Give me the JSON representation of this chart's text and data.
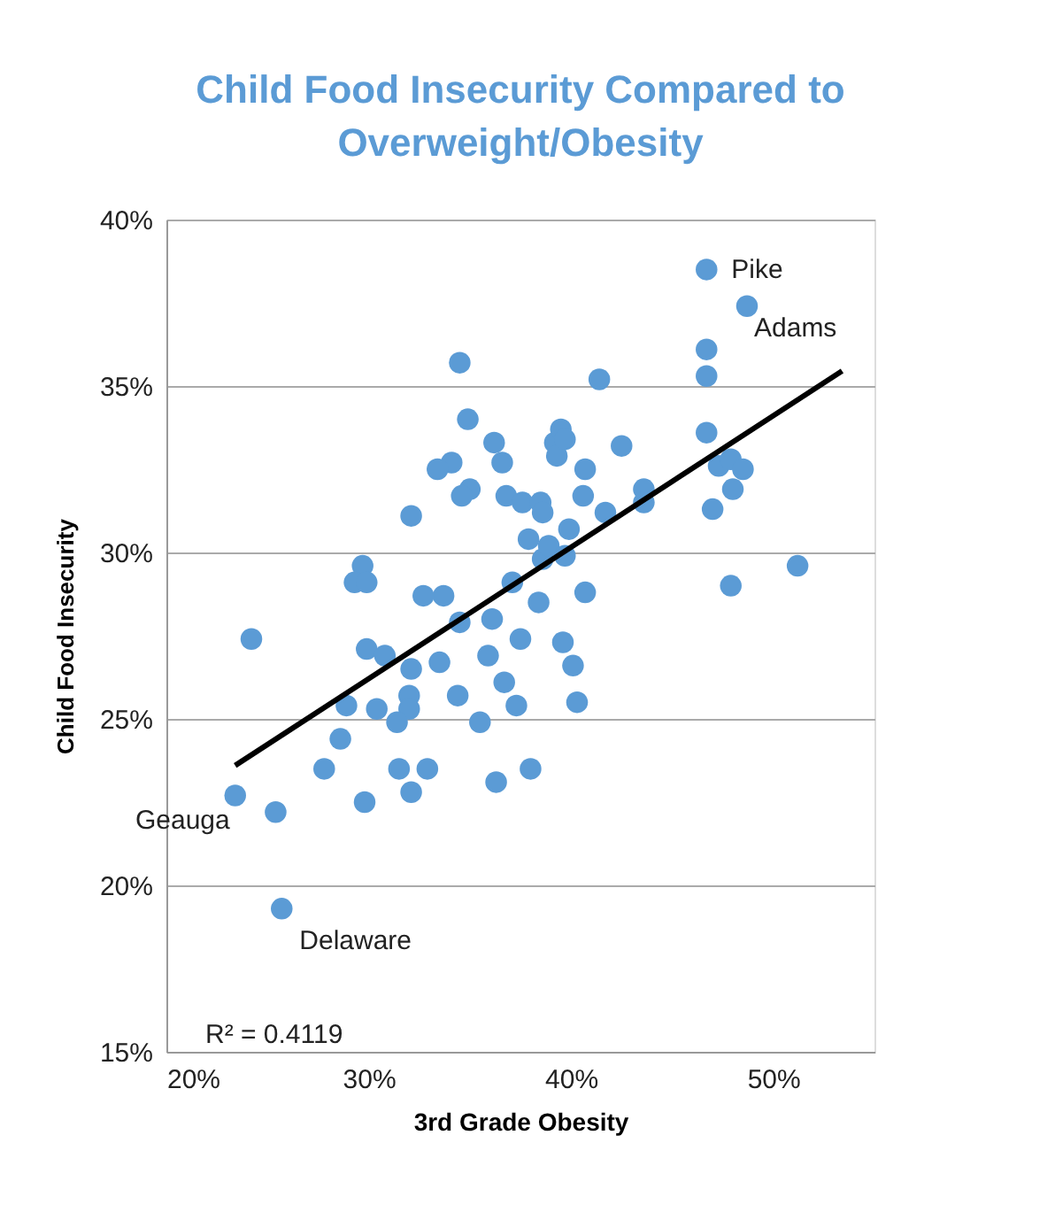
{
  "chart_data": {
    "type": "scatter",
    "title": "Child Food Insecurity Compared to Overweight/Obesity",
    "xlabel": "3rd Grade Obesity",
    "ylabel": "Child Food Insecurity",
    "xlim": [
      20,
      55
    ],
    "ylim": [
      15,
      40
    ],
    "xticks": [
      {
        "value": 20,
        "label": "20%"
      },
      {
        "value": 30,
        "label": "30%"
      },
      {
        "value": 40,
        "label": "40%"
      },
      {
        "value": 50,
        "label": "50%"
      }
    ],
    "yticks": [
      {
        "value": 15,
        "label": "15%"
      },
      {
        "value": 20,
        "label": "20%"
      },
      {
        "value": 25,
        "label": "25%"
      },
      {
        "value": 30,
        "label": "30%"
      },
      {
        "value": 35,
        "label": "35%"
      },
      {
        "value": 40,
        "label": "40%"
      }
    ],
    "grid": "y",
    "series": [
      {
        "color": "#5b9bd5",
        "marker": "circle",
        "x": [
          46.7,
          48.7,
          34.5,
          46.7,
          46.7,
          41.4,
          34.9,
          36.2,
          34.1,
          33.4,
          35.0,
          34.6,
          32.1,
          36.6,
          36.8,
          37.6,
          38.5,
          37.9,
          39.2,
          39.3,
          39.5,
          39.7,
          38.6,
          38.6,
          38.9,
          40.7,
          40.6,
          42.5,
          41.7,
          43.6,
          43.6,
          46.7,
          47.3,
          47.9,
          48.5,
          48.0,
          47.0,
          47.9,
          51.2,
          39.9,
          39.7,
          37.1,
          38.4,
          40.7,
          36.1,
          34.5,
          33.7,
          32.7,
          29.7,
          29.3,
          29.9,
          24.2,
          29.9,
          30.8,
          32.1,
          33.5,
          35.9,
          37.5,
          39.6,
          40.1,
          36.7,
          37.3,
          34.4,
          32.0,
          32.0,
          30.4,
          31.4,
          35.5,
          40.3,
          28.9,
          28.6,
          27.8,
          31.5,
          32.9,
          38.0,
          36.3,
          32.1,
          29.8,
          25.4,
          23.4,
          25.7
        ],
        "values": [
          38.5,
          37.4,
          35.7,
          36.1,
          35.3,
          35.2,
          34.0,
          33.3,
          32.7,
          32.5,
          31.9,
          31.7,
          31.1,
          32.7,
          31.7,
          31.5,
          31.5,
          30.4,
          33.3,
          32.9,
          33.7,
          33.4,
          31.2,
          29.8,
          30.2,
          32.5,
          31.7,
          33.2,
          31.2,
          31.9,
          31.5,
          33.6,
          32.6,
          32.8,
          32.5,
          31.9,
          31.3,
          29.0,
          29.6,
          30.7,
          29.9,
          29.1,
          28.5,
          28.8,
          28.0,
          27.9,
          28.7,
          28.7,
          29.6,
          29.1,
          29.1,
          27.4,
          27.1,
          26.9,
          26.5,
          26.7,
          26.9,
          27.4,
          27.3,
          26.6,
          26.1,
          25.4,
          25.7,
          25.7,
          25.3,
          25.3,
          24.9,
          24.9,
          25.5,
          25.4,
          24.4,
          23.5,
          23.5,
          23.5,
          23.5,
          23.1,
          22.8,
          22.5,
          22.2,
          22.7,
          19.3
        ]
      },
      {
        "type": "line",
        "color": "#000000",
        "x": [
          23.4,
          53.4
        ],
        "values": [
          23.6,
          35.45
        ]
      }
    ],
    "annotations": [
      {
        "text": "Pike",
        "x": 46.7,
        "y": 38.5
      },
      {
        "text": "Adams",
        "x": 48.7,
        "y": 37.4
      },
      {
        "text": "Geauga",
        "x": 23.4,
        "y": 22.7
      },
      {
        "text": "Delaware",
        "x": 25.7,
        "y": 19.3
      },
      "R² = 0.4119"
    ]
  }
}
